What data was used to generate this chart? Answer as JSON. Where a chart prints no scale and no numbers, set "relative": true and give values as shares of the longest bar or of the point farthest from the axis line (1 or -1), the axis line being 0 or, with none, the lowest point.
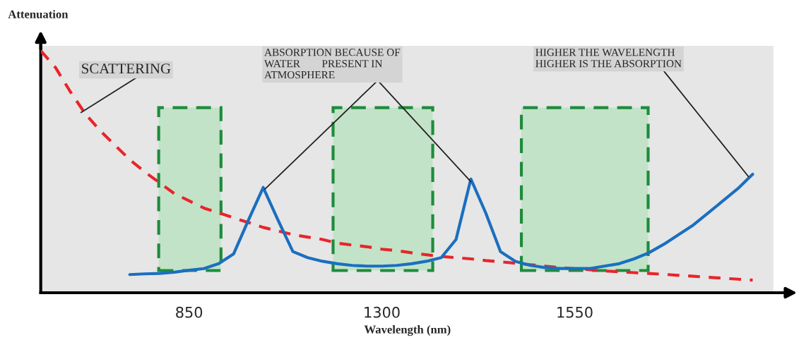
{
  "chart_data": {
    "type": "line",
    "relative": true,
    "xlabel": "Wavelength (nm)",
    "ylabel": "Attenuation",
    "categories": [
      null,
      null,
      null,
      null,
      null,
      null,
      null,
      null,
      null,
      null,
      "850",
      null,
      null,
      null,
      null,
      null,
      null,
      null,
      null,
      null,
      null,
      null,
      null,
      "1300",
      null,
      null,
      null,
      null,
      null,
      null,
      null,
      null,
      null,
      null,
      null,
      null,
      "1550",
      null,
      null,
      null,
      null,
      null,
      null,
      null,
      null,
      null,
      null,
      null,
      null
    ],
    "series": [
      {
        "color": "#e8252a",
        "line_style": "dashed",
        "values": [
          1.0,
          0.93,
          0.83,
          0.74,
          0.67,
          0.61,
          0.55,
          0.5,
          0.455,
          0.41,
          0.38,
          0.35,
          0.33,
          0.31,
          0.29,
          0.27,
          0.255,
          0.24,
          0.23,
          0.22,
          0.205,
          0.197,
          0.19,
          0.18,
          0.174,
          0.165,
          0.157,
          0.15,
          0.145,
          0.14,
          0.133,
          0.128,
          0.122,
          0.116,
          0.11,
          0.104,
          0.099,
          0.095,
          0.09,
          0.087,
          0.083,
          0.08,
          0.076,
          0.072,
          0.068,
          0.064,
          0.06,
          0.056,
          0.052
        ]
      },
      {
        "color": "#1a6fc0",
        "line_style": "solid",
        "values": [
          null,
          null,
          null,
          null,
          null,
          null,
          0.075,
          0.078,
          0.08,
          0.085,
          0.093,
          0.1,
          0.12,
          0.16,
          0.3,
          0.435,
          0.3,
          0.17,
          0.145,
          0.13,
          0.12,
          0.113,
          0.11,
          0.11,
          0.113,
          0.12,
          0.13,
          0.145,
          0.22,
          0.47,
          0.33,
          0.17,
          0.13,
          0.113,
          0.104,
          0.1,
          0.1,
          0.1,
          0.11,
          0.12,
          0.14,
          0.165,
          0.2,
          0.24,
          0.28,
          0.33,
          0.38,
          0.43,
          0.49
        ]
      }
    ],
    "annotations": [
      "SCATTERING",
      "ABSORPTION BECAUSE OF\nWATER        PRESENT IN\nATMOSPHERE",
      "HIGHER THE WAVELENGTH\nHIGHER IS THE ABSORPTION"
    ],
    "grid": false
  }
}
